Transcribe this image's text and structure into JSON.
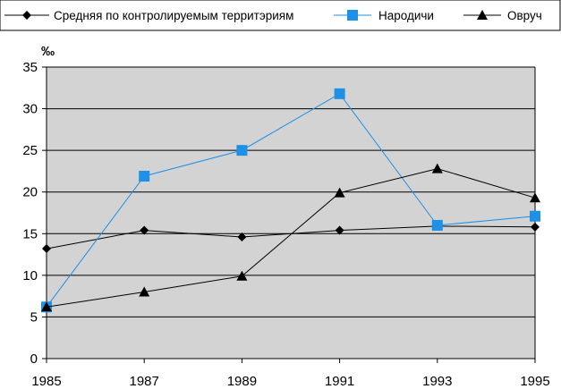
{
  "chart_data": {
    "type": "line",
    "ylabel": "‰",
    "x": [
      "1985",
      "1987",
      "1989",
      "1991",
      "1993",
      "1995"
    ],
    "yticks": [
      "0",
      "5",
      "10",
      "15",
      "20",
      "25",
      "30",
      "35"
    ],
    "ylim": [
      0,
      35
    ],
    "grid": true,
    "legend_position": "top",
    "plot_background": "#d3d3d3",
    "series": [
      {
        "name": "Средняя по контролируемым территэриям",
        "marker": "diamond",
        "color": "#000000",
        "values": [
          13.2,
          15.4,
          14.6,
          15.4,
          15.9,
          15.8
        ]
      },
      {
        "name": "Народичи",
        "marker": "square",
        "color": "#1e90e6",
        "values": [
          6.2,
          21.9,
          25.0,
          31.8,
          16.0,
          17.1
        ]
      },
      {
        "name": "Овруч",
        "marker": "triangle",
        "color": "#000000",
        "values": [
          6.2,
          8.0,
          9.9,
          19.9,
          22.8,
          19.3
        ]
      }
    ]
  }
}
